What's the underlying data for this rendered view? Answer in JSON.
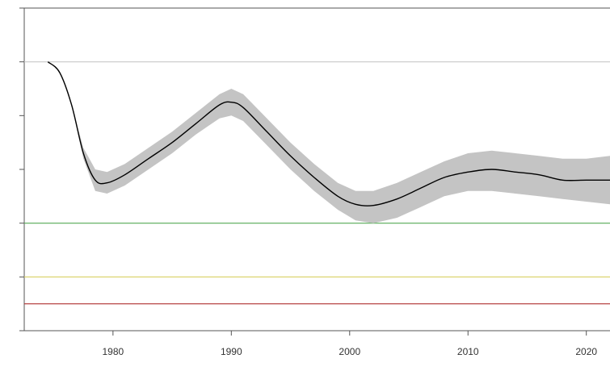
{
  "chart_data": {
    "type": "line",
    "title": "",
    "xlabel": "",
    "ylabel": "",
    "xlim": [
      1972.5,
      2022
    ],
    "ylim": [
      0,
      6
    ],
    "x_ticks": [
      1980,
      1990,
      2000,
      2010,
      2020
    ],
    "x_tick_labels": [
      "1980",
      "1990",
      "2000",
      "2010",
      "2020"
    ],
    "y_ticks": [
      0,
      1,
      2,
      3,
      4,
      5,
      6
    ],
    "grid": false,
    "legend": "none",
    "reference_lines": [
      {
        "y": 5.0,
        "color": "#c8c8c8"
      },
      {
        "y": 2.0,
        "color": "#55aa55"
      },
      {
        "y": 1.0,
        "color": "#d8d060"
      },
      {
        "y": 0.5,
        "color": "#b03030"
      }
    ],
    "series": [
      {
        "line_color": "#000000",
        "band_color": "#c4c4c4",
        "x": [
          1974.5,
          1975.5,
          1976.5,
          1977.5,
          1978.5,
          1979.5,
          1981,
          1983,
          1985,
          1987,
          1989,
          1990,
          1991,
          1993,
          1995,
          1997,
          1999,
          2000.5,
          2002,
          2004,
          2006,
          2008,
          2010,
          2012,
          2014,
          2016,
          2018,
          2020,
          2022
        ],
        "y": [
          5.0,
          4.8,
          4.2,
          3.3,
          2.8,
          2.75,
          2.9,
          3.2,
          3.5,
          3.85,
          4.2,
          4.25,
          4.15,
          3.7,
          3.25,
          2.85,
          2.5,
          2.35,
          2.33,
          2.45,
          2.65,
          2.85,
          2.95,
          3.0,
          2.95,
          2.9,
          2.8,
          2.8,
          2.8
        ],
        "lower": [
          5.0,
          4.8,
          4.2,
          3.2,
          2.6,
          2.55,
          2.7,
          3.0,
          3.3,
          3.65,
          3.95,
          4.0,
          3.9,
          3.45,
          3.0,
          2.6,
          2.25,
          2.05,
          2.0,
          2.1,
          2.3,
          2.5,
          2.6,
          2.6,
          2.55,
          2.5,
          2.45,
          2.4,
          2.35
        ],
        "upper": [
          5.0,
          4.8,
          4.2,
          3.4,
          3.0,
          2.95,
          3.1,
          3.4,
          3.7,
          4.05,
          4.4,
          4.5,
          4.4,
          3.95,
          3.5,
          3.1,
          2.75,
          2.6,
          2.6,
          2.75,
          2.95,
          3.15,
          3.3,
          3.35,
          3.3,
          3.25,
          3.2,
          3.2,
          3.25
        ]
      }
    ]
  }
}
